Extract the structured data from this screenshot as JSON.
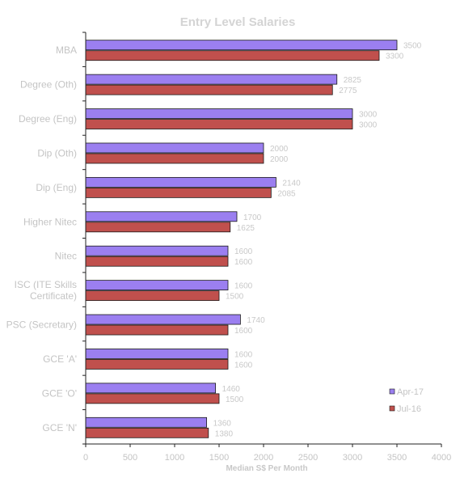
{
  "chart_data": {
    "type": "bar",
    "orientation": "horizontal",
    "title": "Entry Level Salaries",
    "xlabel": "Median  S$ Per Month",
    "ylabel": "",
    "xlim": [
      0,
      4000
    ],
    "xticks": [
      0,
      500,
      1000,
      1500,
      2000,
      2500,
      3000,
      3500,
      4000
    ],
    "grid": false,
    "legend_position": "bottom-right",
    "categories": [
      [
        "MBA"
      ],
      [
        "Degree (Oth)"
      ],
      [
        "Degree (Eng)"
      ],
      [
        "Dip (Oth)"
      ],
      [
        "Dip (Eng)"
      ],
      [
        "Higher Nitec"
      ],
      [
        "Nitec"
      ],
      [
        "ISC (ITE Skills",
        "Certificate)"
      ],
      [
        "PSC (Secretary)"
      ],
      [
        "GCE 'A'"
      ],
      [
        "GCE 'O'"
      ],
      [
        "GCE 'N'"
      ]
    ],
    "series": [
      {
        "name": "Apr-17",
        "color": "#9b7ff0",
        "values": [
          3500,
          2825,
          3000,
          2000,
          2140,
          1700,
          1600,
          1600,
          1740,
          1600,
          1460,
          1360
        ]
      },
      {
        "name": "Jul-16",
        "color": "#c0504d",
        "values": [
          3300,
          2775,
          3000,
          2000,
          2085,
          1625,
          1600,
          1500,
          1600,
          1600,
          1500,
          1380
        ]
      }
    ]
  }
}
